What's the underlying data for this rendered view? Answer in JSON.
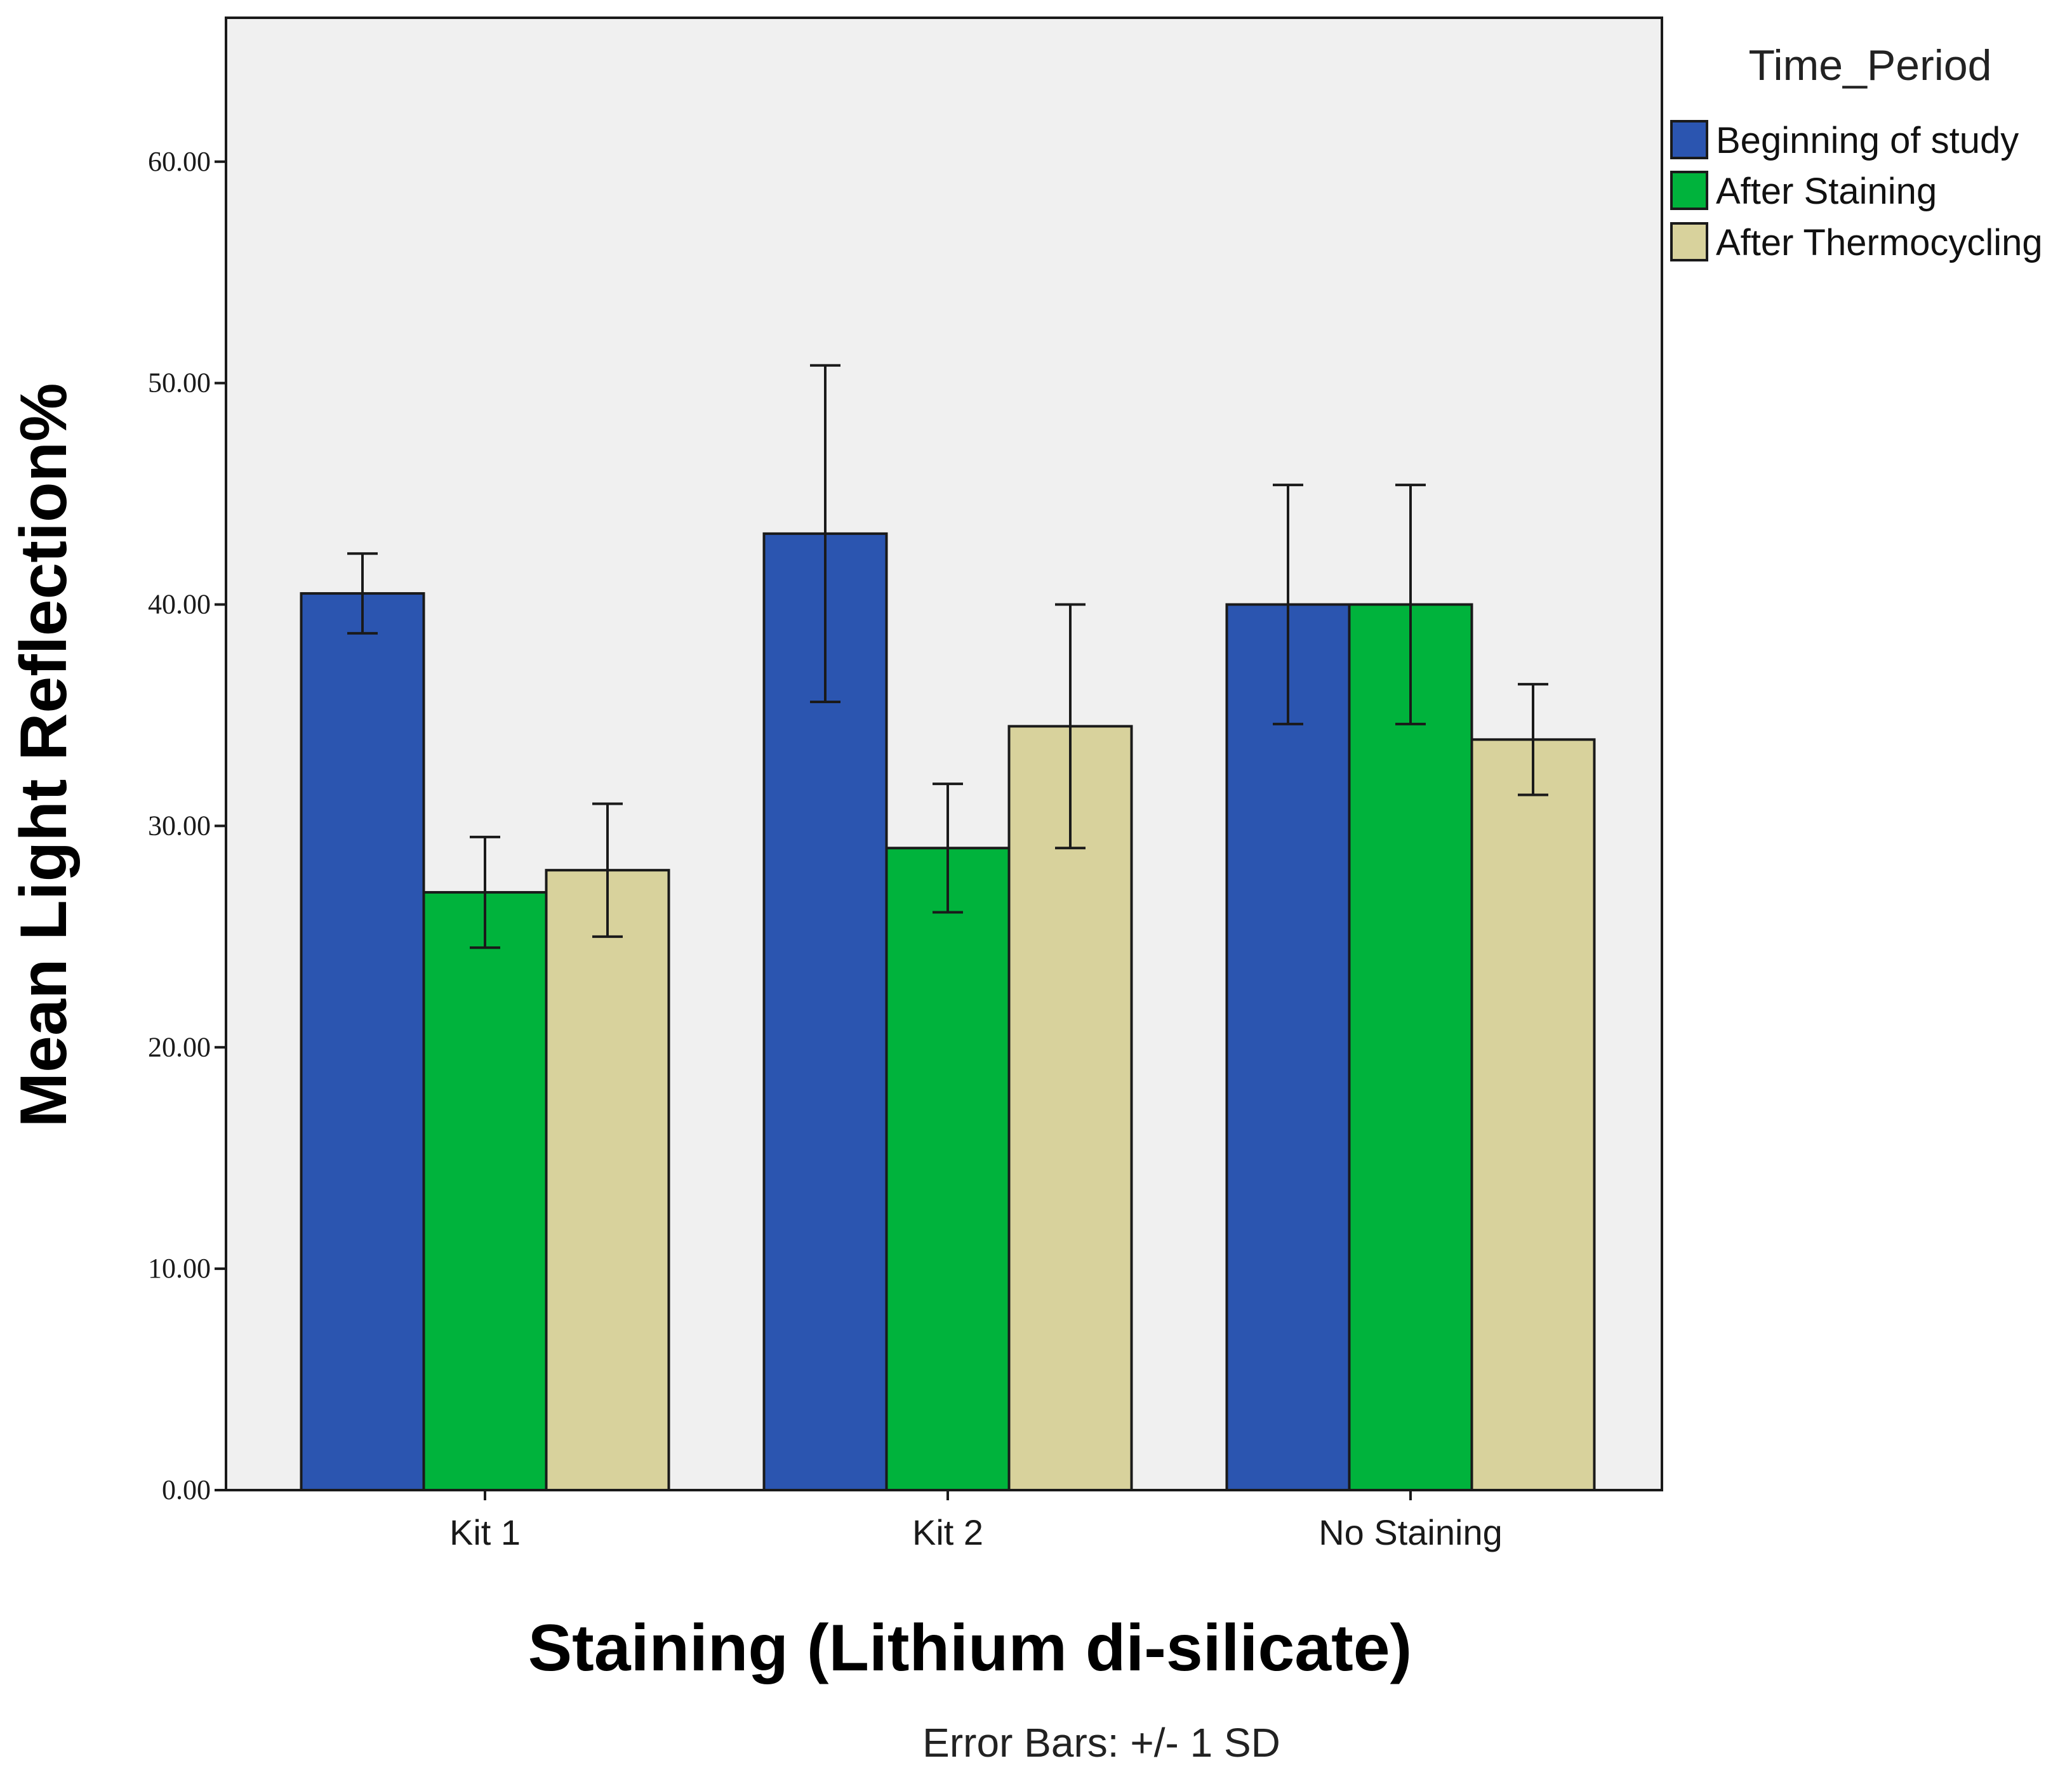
{
  "chart_data": {
    "type": "bar",
    "title": "",
    "xlabel": "Staining (Lithium di-silicate)",
    "ylabel": "Mean Light Reflection%",
    "note": "Error Bars:  +/- 1 SD",
    "ylim": [
      0,
      66.5
    ],
    "yticks": [
      "0.00",
      "10.00",
      "20.00",
      "30.00",
      "40.00",
      "50.00",
      "60.00"
    ],
    "yticks_values": [
      0,
      10,
      20,
      30,
      40,
      50,
      60
    ],
    "categories": [
      "Kit 1",
      "Kit 2",
      "No Staining"
    ],
    "legend_title": "Time_Period",
    "legend_position": "top-right, outside plot",
    "grid": false,
    "series": [
      {
        "name": "Beginning of study",
        "color": "#2b55b0",
        "values": [
          40.5,
          43.2,
          40.0
        ],
        "sd": [
          1.8,
          7.6,
          5.4
        ]
      },
      {
        "name": "After Staining",
        "color": "#00b33c",
        "values": [
          27.0,
          29.0,
          40.0
        ],
        "sd": [
          2.5,
          2.9,
          5.4
        ]
      },
      {
        "name": "After Thermocycling",
        "color": "#d8d29c",
        "values": [
          28.0,
          34.5,
          33.9
        ],
        "sd": [
          3.0,
          5.5,
          2.5
        ]
      }
    ],
    "plot_background": "#f0f0f0"
  }
}
